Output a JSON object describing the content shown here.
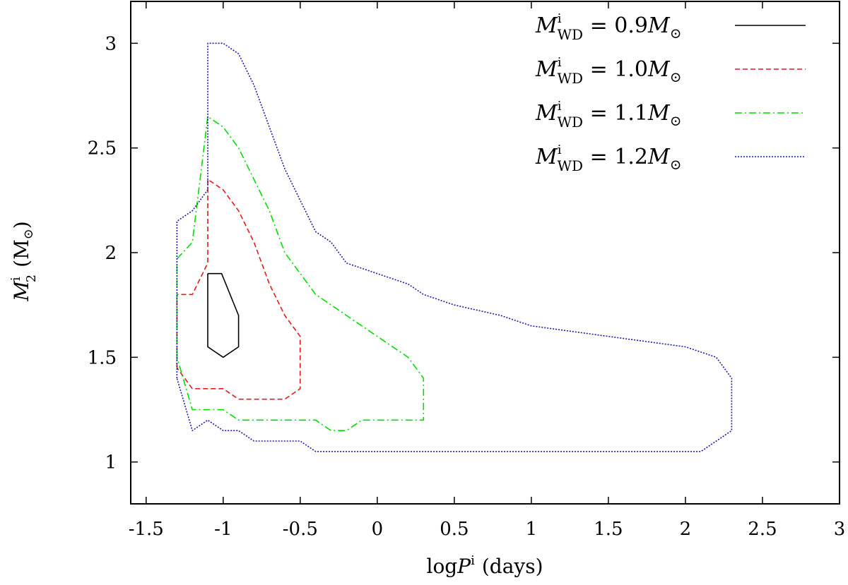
{
  "chart_data": {
    "type": "line",
    "xlabel": {
      "main": "log",
      "var": "P",
      "sup": "i",
      "unit": "(days)"
    },
    "ylabel": {
      "var": "M",
      "sub": "2",
      "sup": "i",
      "unit": "(M",
      "unit_symbol": "⊙",
      "unit_close": ")"
    },
    "xlim": [
      -1.6,
      3.0
    ],
    "ylim": [
      0.8,
      3.2
    ],
    "xticks": [
      -1.5,
      -1,
      -0.5,
      0,
      0.5,
      1,
      1.5,
      2,
      2.5,
      3
    ],
    "xtick_labels": [
      "-1.5",
      "-1",
      "-0.5",
      "0",
      "0.5",
      "1",
      "1.5",
      "2",
      "2.5",
      "3"
    ],
    "yticks": [
      1,
      1.5,
      2,
      2.5,
      3
    ],
    "ytick_labels": [
      "1",
      "1.5",
      "2",
      "2.5",
      "3"
    ],
    "grid": false,
    "legend_position": "top-right",
    "series": [
      {
        "name": "M_WD^i = 0.9M⊙",
        "legend": {
          "var": "M",
          "sup": "i",
          "sub": "WD",
          "eq": "= 0.9",
          "tail": "M",
          "tail_sub": "⊙"
        },
        "color": "#000000",
        "dash": "solid",
        "points": [
          [
            -1.1,
            1.9
          ],
          [
            -1.01,
            1.9
          ],
          [
            -0.9,
            1.7
          ],
          [
            -0.9,
            1.55
          ],
          [
            -1.0,
            1.5
          ],
          [
            -1.1,
            1.55
          ],
          [
            -1.1,
            1.9
          ]
        ]
      },
      {
        "name": "M_WD^i = 1.0M⊙",
        "legend": {
          "var": "M",
          "sup": "i",
          "sub": "WD",
          "eq": "= 1.0",
          "tail": "M",
          "tail_sub": "⊙"
        },
        "color": "#e41a1c",
        "dash": "dashed",
        "points": [
          [
            -1.3,
            1.45
          ],
          [
            -1.3,
            1.8
          ],
          [
            -1.2,
            1.8
          ],
          [
            -1.1,
            1.95
          ],
          [
            -1.1,
            2.35
          ],
          [
            -1.0,
            2.3
          ],
          [
            -0.9,
            2.2
          ],
          [
            -0.8,
            2.05
          ],
          [
            -0.7,
            1.85
          ],
          [
            -0.6,
            1.7
          ],
          [
            -0.5,
            1.6
          ],
          [
            -0.5,
            1.35
          ],
          [
            -0.6,
            1.3
          ],
          [
            -0.8,
            1.3
          ],
          [
            -0.9,
            1.3
          ],
          [
            -1.0,
            1.35
          ],
          [
            -1.2,
            1.35
          ],
          [
            -1.3,
            1.45
          ]
        ]
      },
      {
        "name": "M_WD^i = 1.1M⊙",
        "legend": {
          "var": "M",
          "sup": "i",
          "sub": "WD",
          "eq": "= 1.1",
          "tail": "M",
          "tail_sub": "⊙"
        },
        "color": "#00dd00",
        "dash": "dashdot",
        "points": [
          [
            -1.3,
            1.5
          ],
          [
            -1.3,
            1.97
          ],
          [
            -1.2,
            2.05
          ],
          [
            -1.1,
            2.65
          ],
          [
            -1.0,
            2.6
          ],
          [
            -0.9,
            2.5
          ],
          [
            -0.8,
            2.35
          ],
          [
            -0.7,
            2.2
          ],
          [
            -0.6,
            2.0
          ],
          [
            -0.4,
            1.8
          ],
          [
            -0.2,
            1.7
          ],
          [
            0.0,
            1.6
          ],
          [
            0.2,
            1.5
          ],
          [
            0.3,
            1.4
          ],
          [
            0.3,
            1.2
          ],
          [
            0.2,
            1.2
          ],
          [
            0.0,
            1.2
          ],
          [
            -0.1,
            1.2
          ],
          [
            -0.2,
            1.15
          ],
          [
            -0.3,
            1.15
          ],
          [
            -0.4,
            1.2
          ],
          [
            -0.5,
            1.2
          ],
          [
            -0.6,
            1.2
          ],
          [
            -0.8,
            1.2
          ],
          [
            -0.9,
            1.2
          ],
          [
            -1.0,
            1.25
          ],
          [
            -1.2,
            1.25
          ],
          [
            -1.3,
            1.5
          ]
        ]
      },
      {
        "name": "M_WD^i = 1.2M⊙",
        "legend": {
          "var": "M",
          "sup": "i",
          "sub": "WD",
          "eq": "= 1.2",
          "tail": "M",
          "tail_sub": "⊙"
        },
        "color": "#1a1aaa",
        "dash": "dotted",
        "points": [
          [
            -1.3,
            1.4
          ],
          [
            -1.3,
            2.15
          ],
          [
            -1.2,
            2.2
          ],
          [
            -1.1,
            2.3
          ],
          [
            -1.1,
            3.0
          ],
          [
            -1.0,
            3.0
          ],
          [
            -0.9,
            2.95
          ],
          [
            -0.8,
            2.8
          ],
          [
            -0.7,
            2.6
          ],
          [
            -0.6,
            2.4
          ],
          [
            -0.5,
            2.25
          ],
          [
            -0.4,
            2.1
          ],
          [
            -0.3,
            2.05
          ],
          [
            -0.2,
            1.95
          ],
          [
            0.0,
            1.9
          ],
          [
            0.2,
            1.85
          ],
          [
            0.3,
            1.8
          ],
          [
            0.5,
            1.75
          ],
          [
            0.8,
            1.7
          ],
          [
            1.0,
            1.65
          ],
          [
            1.5,
            1.6
          ],
          [
            2.0,
            1.55
          ],
          [
            2.2,
            1.5
          ],
          [
            2.3,
            1.4
          ],
          [
            2.3,
            1.15
          ],
          [
            2.1,
            1.05
          ],
          [
            1.5,
            1.05
          ],
          [
            1.0,
            1.05
          ],
          [
            0.5,
            1.05
          ],
          [
            0.0,
            1.05
          ],
          [
            -0.4,
            1.05
          ],
          [
            -0.5,
            1.1
          ],
          [
            -0.8,
            1.1
          ],
          [
            -0.9,
            1.15
          ],
          [
            -1.0,
            1.15
          ],
          [
            -1.1,
            1.2
          ],
          [
            -1.2,
            1.15
          ],
          [
            -1.3,
            1.4
          ]
        ]
      }
    ]
  }
}
